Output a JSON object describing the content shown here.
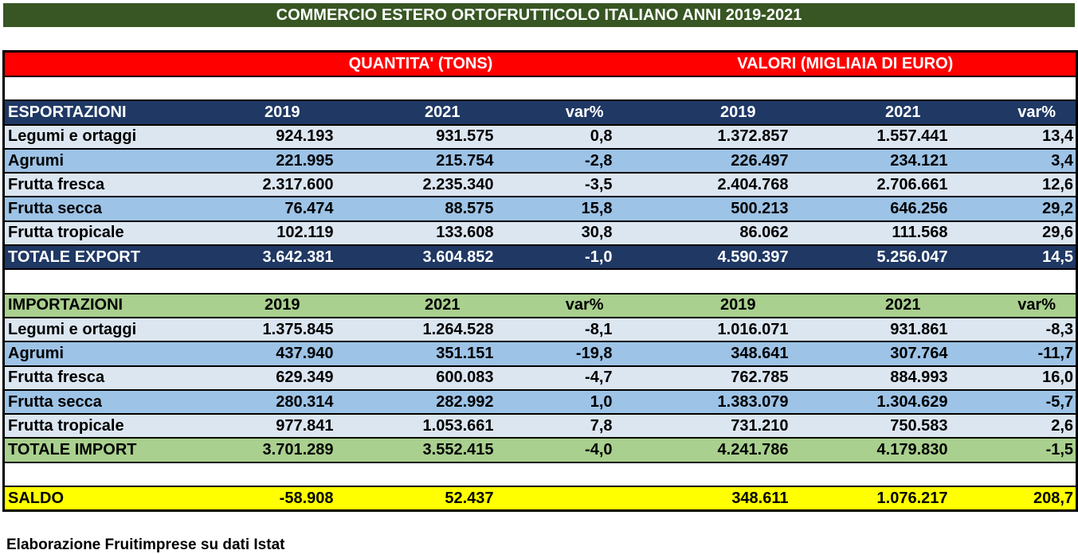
{
  "title": "COMMERCIO ESTERO ORTOFRUTTICOLO ITALIANO ANNI 2019-2021",
  "group_headers": {
    "quantity": "QUANTITA' (TONS)",
    "value": "VALORI (MIGLIAIA DI EURO)"
  },
  "columns": [
    "2019",
    "2021",
    "var%",
    "2019",
    "2021",
    "var%"
  ],
  "export": {
    "label": "ESPORTAZIONI",
    "rows": [
      {
        "name": "Legumi e ortaggi",
        "values": [
          "924.193",
          "931.575",
          "0,8",
          "1.372.857",
          "1.557.441",
          "13,4"
        ]
      },
      {
        "name": "Agrumi",
        "values": [
          "221.995",
          "215.754",
          "-2,8",
          "226.497",
          "234.121",
          "3,4"
        ]
      },
      {
        "name": "Frutta fresca",
        "values": [
          "2.317.600",
          "2.235.340",
          "-3,5",
          "2.404.768",
          "2.706.661",
          "12,6"
        ]
      },
      {
        "name": "Frutta secca",
        "values": [
          "76.474",
          "88.575",
          "15,8",
          "500.213",
          "646.256",
          "29,2"
        ]
      },
      {
        "name": "Frutta tropicale",
        "values": [
          "102.119",
          "133.608",
          "30,8",
          "86.062",
          "111.568",
          "29,6"
        ]
      }
    ],
    "total": {
      "name": "TOTALE EXPORT",
      "values": [
        "3.642.381",
        "3.604.852",
        "-1,0",
        "4.590.397",
        "5.256.047",
        "14,5"
      ]
    }
  },
  "import": {
    "label": "IMPORTAZIONI",
    "rows": [
      {
        "name": "Legumi e ortaggi",
        "values": [
          "1.375.845",
          "1.264.528",
          "-8,1",
          "1.016.071",
          "931.861",
          "-8,3"
        ]
      },
      {
        "name": "Agrumi",
        "values": [
          "437.940",
          "351.151",
          "-19,8",
          "348.641",
          "307.764",
          "-11,7"
        ]
      },
      {
        "name": "Frutta fresca",
        "values": [
          "629.349",
          "600.083",
          "-4,7",
          "762.785",
          "884.993",
          "16,0"
        ]
      },
      {
        "name": "Frutta secca",
        "values": [
          "280.314",
          "282.992",
          "1,0",
          "1.383.079",
          "1.304.629",
          "-5,7"
        ]
      },
      {
        "name": "Frutta tropicale",
        "values": [
          "977.841",
          "1.053.661",
          "7,8",
          "731.210",
          "750.583",
          "2,6"
        ]
      }
    ],
    "total": {
      "name": "TOTALE IMPORT",
      "values": [
        "3.701.289",
        "3.552.415",
        "-4,0",
        "4.241.786",
        "4.179.830",
        "-1,5"
      ]
    }
  },
  "saldo": {
    "name": "SALDO",
    "values": [
      "-58.908",
      "52.437",
      "",
      "348.611",
      "1.076.217",
      "208,7"
    ]
  },
  "footer": "Elaborazione Fruitimprese su dati Istat"
}
